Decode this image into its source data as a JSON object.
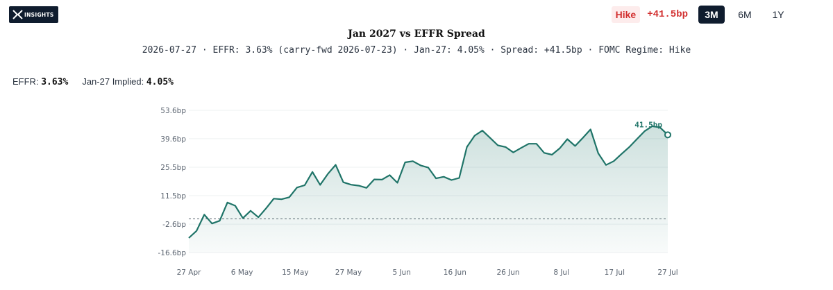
{
  "brand": {
    "logo_text": "INSIGHTS"
  },
  "header": {
    "regime_badge": "Hike",
    "spread_badge": "+41.5bp",
    "ranges": [
      {
        "label": "3M",
        "active": true
      },
      {
        "label": "6M",
        "active": false
      },
      {
        "label": "1Y",
        "active": false
      }
    ]
  },
  "readout": {
    "effr_label": "EFFR:",
    "effr_value": "3.63%",
    "implied_label": "Jan-27 Implied:",
    "implied_value": "4.05%"
  },
  "colors": {
    "line": "#1f7468",
    "fill": "#1f7468",
    "zero_line": "#55606a",
    "grid": "#edf0f2",
    "badge_red": "#d22f2f",
    "active_btn": "#0f1c2e"
  },
  "chart_data": {
    "type": "area",
    "title": "Jan 2027 vs EFFR Spread",
    "subtitle": "2026-07-27 · EFFR: 3.63% (carry-fwd 2026-07-23) · Jan-27: 4.05% · Spread: +41.5bp · FOMC Regime: Hike",
    "xlabel": "",
    "ylabel": "",
    "ylim": [
      -16.6,
      53.6
    ],
    "yticks": [
      53.6,
      39.6,
      25.5,
      11.5,
      -2.6,
      -16.6
    ],
    "ytick_labels": [
      "53.6bp",
      "39.6bp",
      "25.5bp",
      "11.5bp",
      "-2.6bp",
      "-16.6bp"
    ],
    "xticks": [
      "27 Apr",
      "6 May",
      "15 May",
      "27 May",
      "5 Jun",
      "16 Jun",
      "26 Jun",
      "8 Jul",
      "17 Jul",
      "27 Jul"
    ],
    "baseline": 0,
    "end_label": "41.5bp",
    "grid": true,
    "series": [
      {
        "values": [
          -9.4,
          -5.9,
          2.1,
          -2.3,
          -0.9,
          8.1,
          6.5,
          0.4,
          4.0,
          0.8,
          5.2,
          10.0,
          9.7,
          10.7,
          15.5,
          16.6,
          23.2,
          16.8,
          22.2,
          26.7,
          18.1,
          16.9,
          16.4,
          15.3,
          19.5,
          19.4,
          21.6,
          17.8,
          27.9,
          28.5,
          26.4,
          25.3,
          20.0,
          20.8,
          19.2,
          20.2,
          35.5,
          41.1,
          43.6,
          40.0,
          36.3,
          35.5,
          32.8,
          35.0,
          37.1,
          37.1,
          32.6,
          31.7,
          34.8,
          39.4,
          36.0,
          40.0,
          44.2,
          32.4,
          26.6,
          28.5,
          32.0,
          35.4,
          39.4,
          43.3,
          45.8,
          45.1,
          41.5
        ]
      }
    ]
  }
}
